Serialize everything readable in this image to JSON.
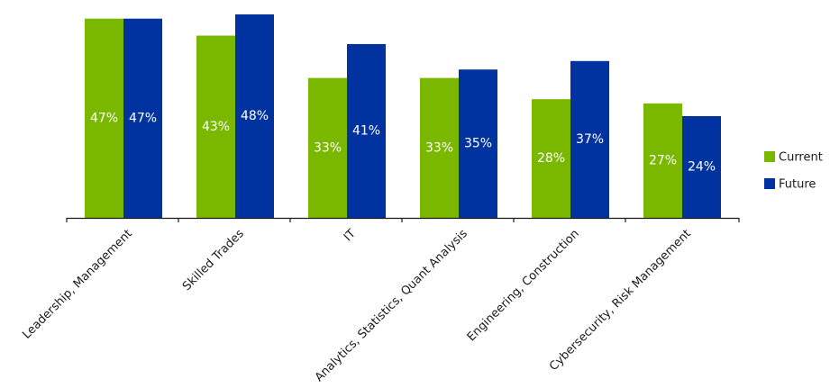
{
  "chart_data": {
    "type": "bar",
    "categories": [
      "Leadership, Management",
      "Skilled Trades",
      "IT",
      "Analytics, Statistics, Quant Analysis",
      "Engineering, Construction",
      "Cybersecurity, Risk Management"
    ],
    "series": [
      {
        "name": "Current",
        "values": [
          47,
          43,
          33,
          33,
          28,
          27
        ],
        "color": "#7ab800"
      },
      {
        "name": "Future",
        "values": [
          47,
          48,
          41,
          35,
          37,
          24
        ],
        "color": "#0033a0"
      }
    ],
    "value_suffix": "%",
    "ylim": [
      0,
      48
    ],
    "grid": false,
    "legend_position": "right",
    "title": "",
    "xlabel": "",
    "ylabel": ""
  }
}
